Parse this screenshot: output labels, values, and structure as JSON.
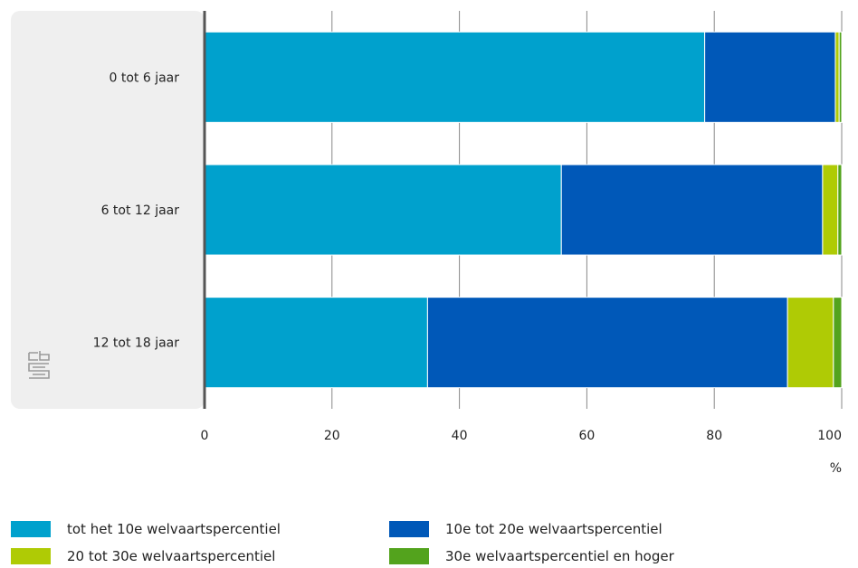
{
  "chart_data": {
    "type": "bar",
    "orientation": "horizontal",
    "stacked": true,
    "categories": [
      "0 tot 6 jaar",
      "6 tot 12 jaar",
      "12 tot 18 jaar"
    ],
    "series": [
      {
        "name": "tot het 10e welvaartspercentiel",
        "color": "#00a1cd",
        "values": [
          78.5,
          56.0,
          35.0
        ]
      },
      {
        "name": "10e tot 20e welvaartspercentiel",
        "color": "#0058b8",
        "values": [
          20.5,
          41.0,
          56.5
        ]
      },
      {
        "name": "20 tot 30e welvaartspercentiel",
        "color": "#afcb05",
        "values": [
          0.6,
          2.4,
          7.2
        ]
      },
      {
        "name": "30e welvaartspercentiel en hoger",
        "color": "#53a31d",
        "values": [
          0.4,
          0.6,
          1.3
        ]
      }
    ],
    "xlim": [
      0,
      100
    ],
    "xticks": [
      0,
      20,
      40,
      60,
      80,
      100
    ],
    "xlabel": "%",
    "grid": true,
    "legend_position": "bottom"
  },
  "logo": {
    "name": "cbs-logo",
    "text": "cbs"
  }
}
